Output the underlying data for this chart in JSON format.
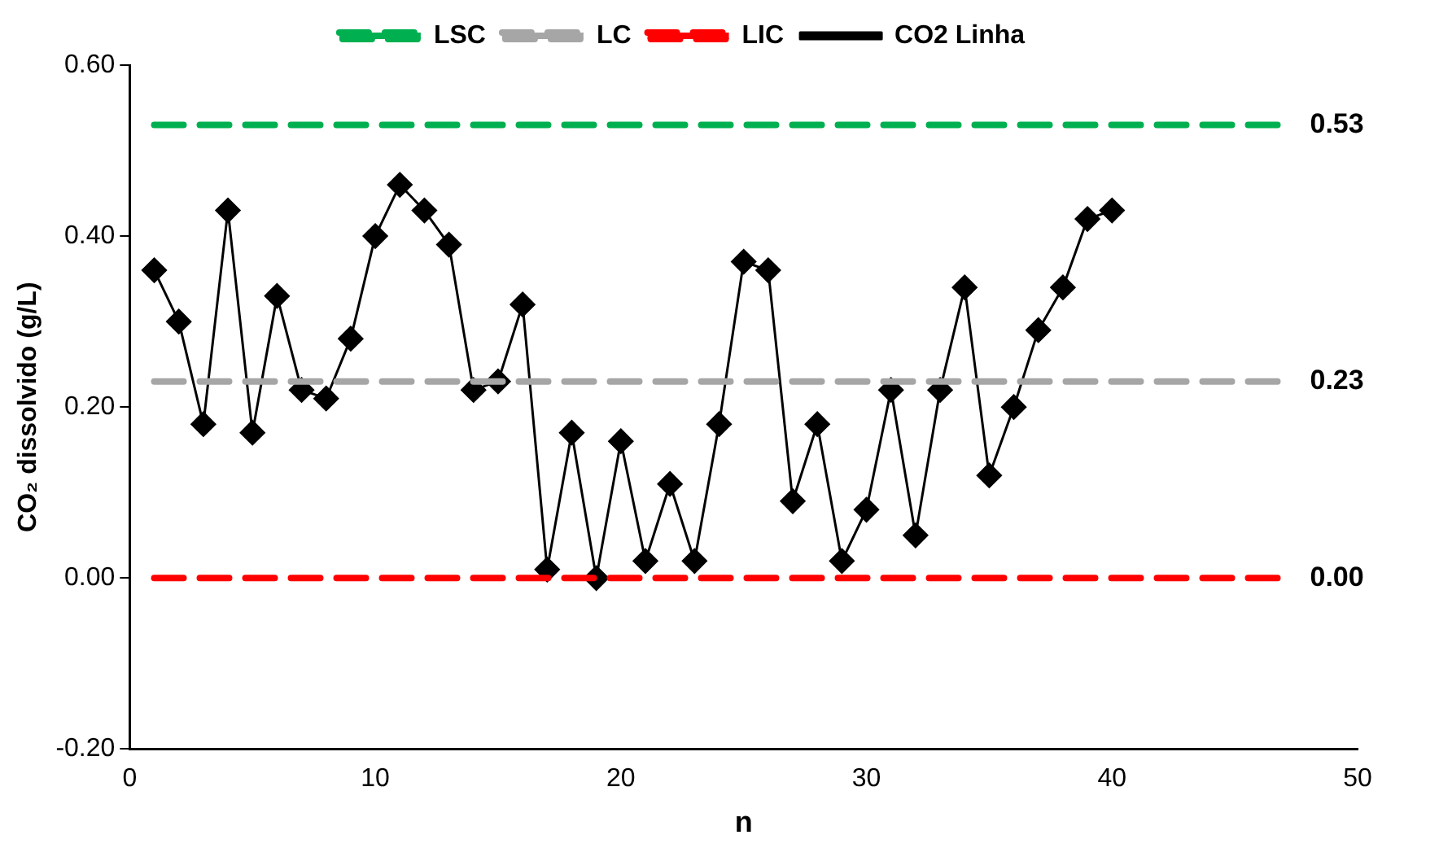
{
  "chart_data": {
    "type": "line",
    "xlabel": "n",
    "ylabel": "CO₂ dissolvido (g/L)",
    "xlim": [
      0,
      50
    ],
    "xticks": [
      0,
      10,
      20,
      30,
      40,
      50
    ],
    "ylim": [
      -0.2,
      0.6
    ],
    "yticks": [
      {
        "value": -0.2,
        "label": "-0.20"
      },
      {
        "value": 0,
        "label": "0.00"
      },
      {
        "value": 0.2,
        "label": "0.20"
      },
      {
        "value": 0.4,
        "label": "0.40"
      },
      {
        "value": 0.6,
        "label": "0.60"
      }
    ],
    "grid": false,
    "legend": "top",
    "series": [
      {
        "name": "LSC",
        "color": "#00b050",
        "line_style": "dashed",
        "marker": "none",
        "x": [
          1,
          47
        ],
        "values": [
          0.53,
          0.53
        ],
        "value_labels": [
          null,
          "0.53"
        ]
      },
      {
        "name": "LC",
        "color": "#a6a6a6",
        "line_style": "dashed",
        "marker": "none",
        "x": [
          1,
          47
        ],
        "values": [
          0.23,
          0.23
        ],
        "value_labels": [
          null,
          "0.23"
        ]
      },
      {
        "name": "LIC",
        "color": "#ff0000",
        "line_style": "dashed",
        "marker": "none",
        "x": [
          1,
          47
        ],
        "values": [
          0,
          0
        ],
        "value_labels": [
          null,
          "0.00"
        ]
      },
      {
        "name": "CO2 Linha",
        "color": "#000000",
        "line_style": "solid",
        "marker": "diamond",
        "x": [
          1,
          2,
          3,
          4,
          5,
          6,
          7,
          8,
          9,
          10,
          11,
          12,
          13,
          14,
          15,
          16,
          17,
          18,
          19,
          20,
          21,
          22,
          23,
          24,
          25,
          26,
          27,
          28,
          29,
          30,
          31,
          32,
          33,
          34,
          35,
          36,
          37,
          38,
          39,
          40
        ],
        "values": [
          0.36,
          0.3,
          0.18,
          0.43,
          0.17,
          0.33,
          0.22,
          0.21,
          0.28,
          0.4,
          0.46,
          0.43,
          0.39,
          0.22,
          0.23,
          0.32,
          0.01,
          0.17,
          0.0,
          0.16,
          0.02,
          0.11,
          0.02,
          0.18,
          0.37,
          0.36,
          0.09,
          0.18,
          0.02,
          0.08,
          0.22,
          0.05,
          0.22,
          0.34,
          0.12,
          0.2,
          0.29,
          0.34,
          0.42,
          0.43
        ]
      }
    ]
  }
}
